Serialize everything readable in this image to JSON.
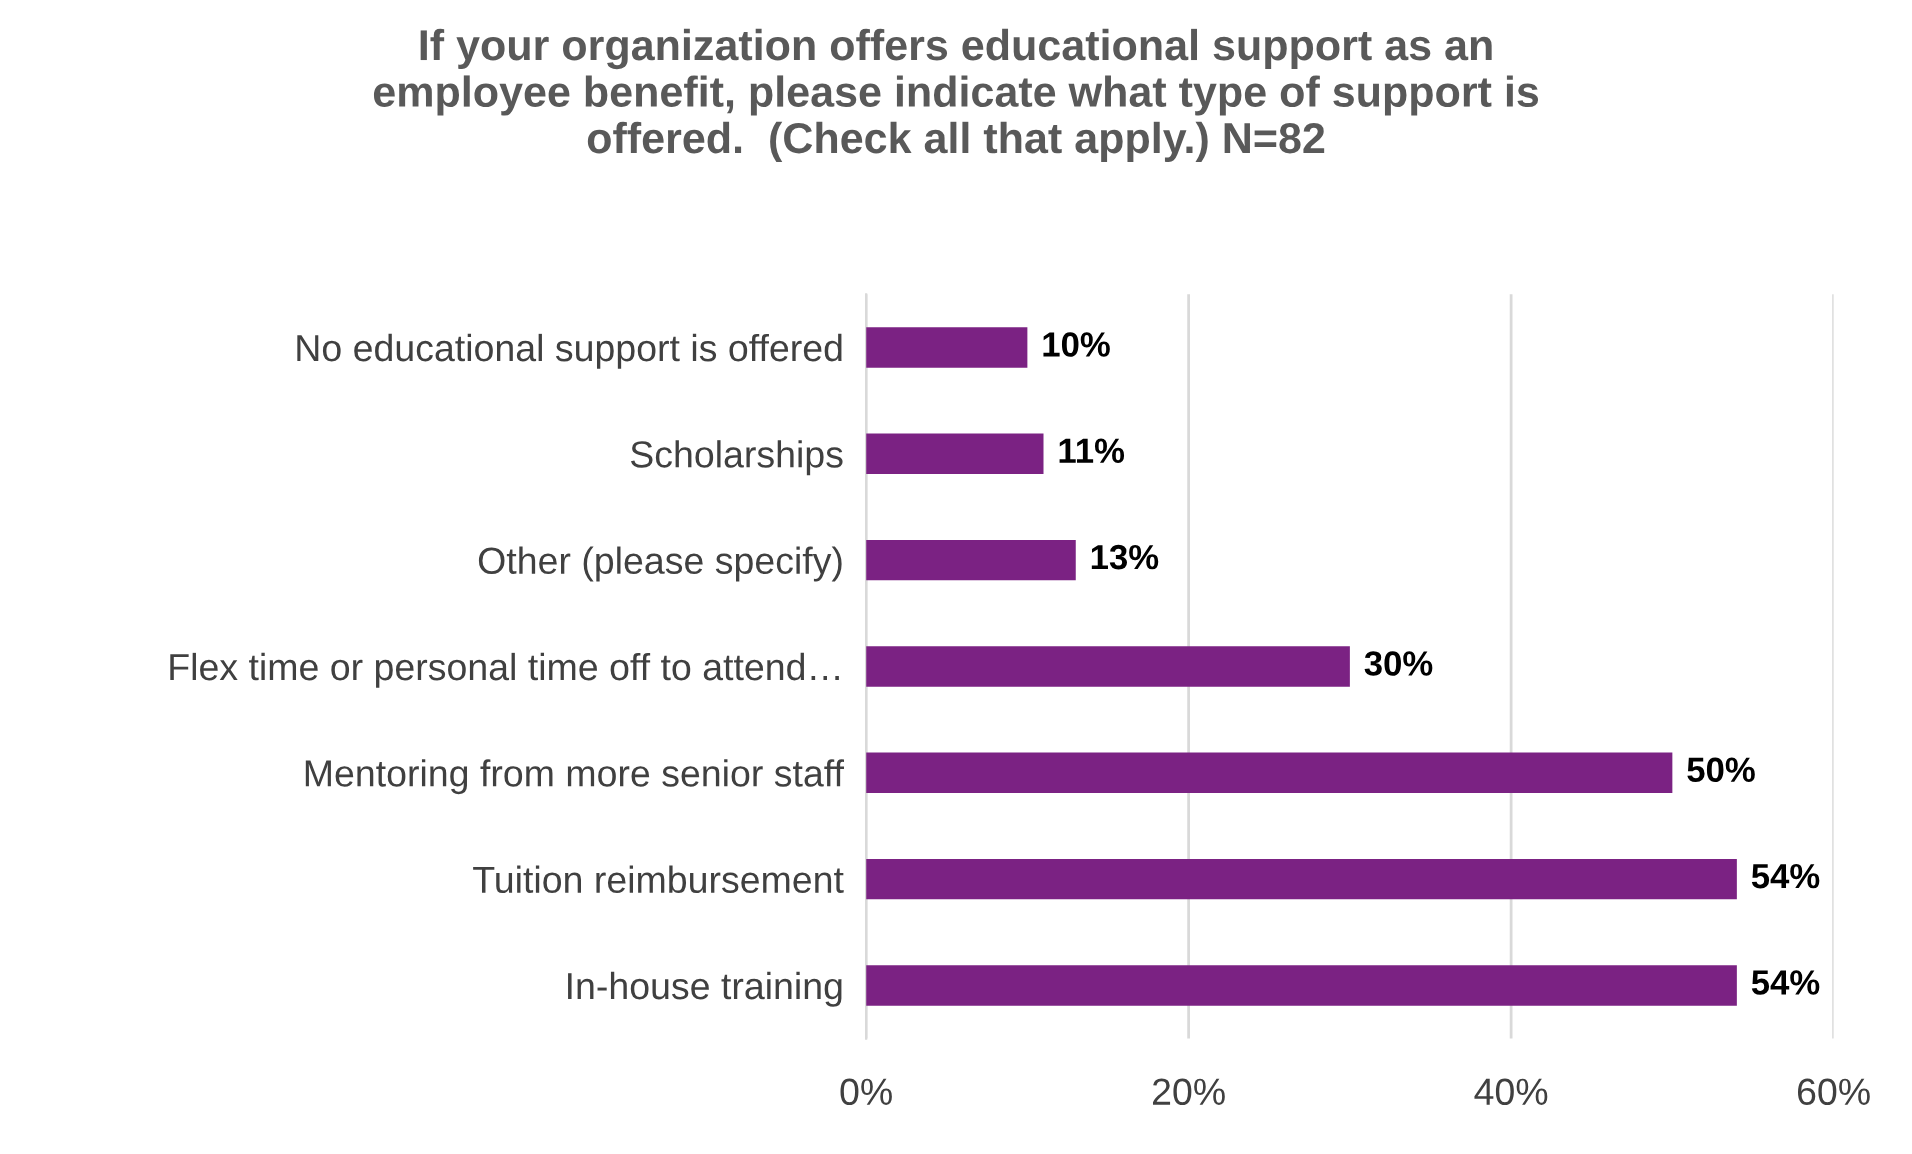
{
  "chart_data": {
    "type": "bar",
    "orientation": "horizontal",
    "title": "If your organization offers educational support as an\nemployee benefit, please indicate what type of support is\noffered.  (Check all that apply.) N=82",
    "categories": [
      "No educational support is offered",
      "Scholarships",
      "Other (please specify)",
      "Flex time or personal time off to attend…",
      "Mentoring from more senior staff",
      "Tuition reimbursement",
      "In-house training"
    ],
    "values": [
      10,
      11,
      13,
      30,
      50,
      54,
      54
    ],
    "value_labels": [
      "10%",
      "11%",
      "13%",
      "30%",
      "50%",
      "54%",
      "54%"
    ],
    "color": "#7b2283",
    "xlim": [
      0,
      60
    ],
    "xticks": [
      {
        "value": 0,
        "label": "0%"
      },
      {
        "value": 20,
        "label": "20%"
      },
      {
        "value": 40,
        "label": "40%"
      },
      {
        "value": 60,
        "label": "60%"
      }
    ],
    "grid": "x",
    "legend": false
  }
}
